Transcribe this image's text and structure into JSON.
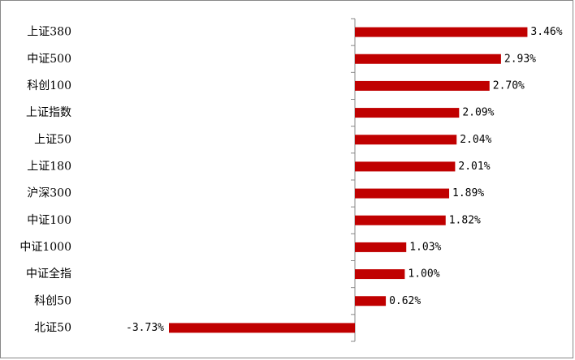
{
  "chart_data": {
    "type": "bar",
    "orientation": "horizontal",
    "color": "#c00000",
    "categories": [
      "上证380",
      "中证500",
      "科创100",
      "上证指数",
      "上证50",
      "上证180",
      "沪深300",
      "中证100",
      "中证1000",
      "中证全指",
      "科创50",
      "北证50"
    ],
    "values": [
      3.46,
      2.93,
      2.7,
      2.09,
      2.04,
      2.01,
      1.89,
      1.82,
      1.03,
      1.0,
      0.62,
      -3.73
    ],
    "value_labels": [
      "3.46%",
      "2.93%",
      "2.70%",
      "2.09%",
      "2.04%",
      "2.01%",
      "1.89%",
      "1.82%",
      "1.03%",
      "1.00%",
      "0.62%",
      "-3.73%"
    ]
  }
}
